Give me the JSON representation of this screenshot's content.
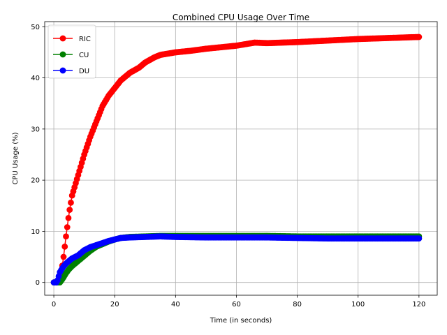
{
  "chart_data": {
    "type": "line",
    "title": "Combined CPU Usage Over Time",
    "xlabel": "Time (in seconds)",
    "ylabel": "CPU Usage (%)",
    "xlim": [
      -3,
      126
    ],
    "ylim": [
      -2.5,
      51
    ],
    "xticks": [
      0,
      20,
      40,
      60,
      80,
      100,
      120
    ],
    "yticks": [
      0,
      10,
      20,
      30,
      40,
      50
    ],
    "grid": true,
    "legend_position": "upper-left",
    "marker": "circle",
    "x_start": 0,
    "x_end": 120,
    "x_step": 0.4,
    "series": [
      {
        "name": "RIC",
        "color": "#ff0000",
        "key_points": [
          [
            0,
            0
          ],
          [
            1,
            0
          ],
          [
            2,
            0.5
          ],
          [
            3,
            4
          ],
          [
            4,
            9
          ],
          [
            5,
            13.5
          ],
          [
            6,
            17
          ],
          [
            8,
            21
          ],
          [
            10,
            25
          ],
          [
            12,
            28.5
          ],
          [
            14,
            31.5
          ],
          [
            16,
            34.5
          ],
          [
            18,
            36.5
          ],
          [
            20,
            38
          ],
          [
            22,
            39.5
          ],
          [
            25,
            41
          ],
          [
            28,
            42
          ],
          [
            30,
            43
          ],
          [
            33,
            44
          ],
          [
            35,
            44.5
          ],
          [
            40,
            45
          ],
          [
            45,
            45.3
          ],
          [
            50,
            45.7
          ],
          [
            60,
            46.3
          ],
          [
            66,
            46.9
          ],
          [
            70,
            46.8
          ],
          [
            80,
            47
          ],
          [
            90,
            47.3
          ],
          [
            100,
            47.6
          ],
          [
            110,
            47.8
          ],
          [
            120,
            48
          ]
        ]
      },
      {
        "name": "CU",
        "color": "#008000",
        "key_points": [
          [
            0,
            0
          ],
          [
            1,
            0
          ],
          [
            2,
            0
          ],
          [
            3,
            0.8
          ],
          [
            4,
            1.8
          ],
          [
            5,
            2.6
          ],
          [
            6,
            3.2
          ],
          [
            8,
            4.2
          ],
          [
            10,
            5.2
          ],
          [
            12,
            6.2
          ],
          [
            14,
            7
          ],
          [
            16,
            7.5
          ],
          [
            18,
            8
          ],
          [
            20,
            8.4
          ],
          [
            22,
            8.7
          ],
          [
            25,
            8.9
          ],
          [
            30,
            9
          ],
          [
            35,
            9.1
          ],
          [
            40,
            9.1
          ],
          [
            50,
            9.1
          ],
          [
            60,
            9.1
          ],
          [
            70,
            9.1
          ],
          [
            80,
            9
          ],
          [
            90,
            9
          ],
          [
            100,
            9
          ],
          [
            110,
            9
          ],
          [
            120,
            9
          ]
        ]
      },
      {
        "name": "DU",
        "color": "#0000ff",
        "key_points": [
          [
            0,
            0
          ],
          [
            1,
            0
          ],
          [
            2,
            2
          ],
          [
            3,
            3
          ],
          [
            4,
            3.7
          ],
          [
            5,
            4.2
          ],
          [
            6,
            4.7
          ],
          [
            8,
            5.3
          ],
          [
            10,
            6.3
          ],
          [
            12,
            6.9
          ],
          [
            14,
            7.3
          ],
          [
            16,
            7.7
          ],
          [
            18,
            8.1
          ],
          [
            20,
            8.4
          ],
          [
            22,
            8.7
          ],
          [
            25,
            8.8
          ],
          [
            30,
            8.9
          ],
          [
            35,
            9
          ],
          [
            40,
            8.9
          ],
          [
            50,
            8.8
          ],
          [
            60,
            8.8
          ],
          [
            70,
            8.8
          ],
          [
            80,
            8.7
          ],
          [
            90,
            8.6
          ],
          [
            100,
            8.6
          ],
          [
            110,
            8.6
          ],
          [
            120,
            8.6
          ]
        ]
      }
    ]
  }
}
